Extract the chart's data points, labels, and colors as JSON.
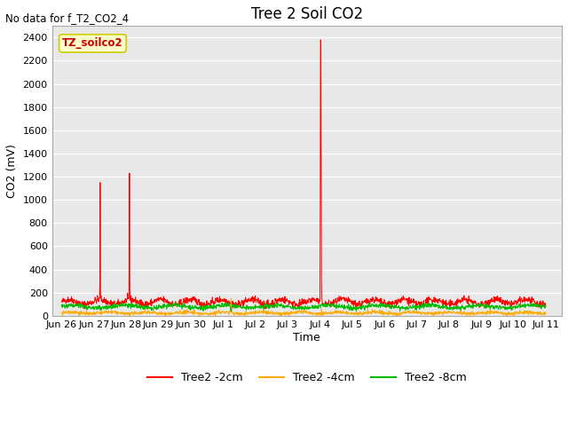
{
  "title": "Tree 2 Soil CO2",
  "no_data_text": "No data for f_T2_CO2_4",
  "ylabel": "CO2 (mV)",
  "xlabel": "Time",
  "annotation": "TZ_soilco2",
  "ylim": [
    0,
    2500
  ],
  "yticks": [
    0,
    200,
    400,
    600,
    800,
    1000,
    1200,
    1400,
    1600,
    1800,
    2000,
    2200,
    2400
  ],
  "background_color": "#e8e8e8",
  "grid_color": "#ffffff",
  "line_colors": {
    "2cm": "#ff0000",
    "4cm": "#ffaa00",
    "8cm": "#00bb00"
  },
  "legend_labels": [
    "Tree2 -2cm",
    "Tree2 -4cm",
    "Tree2 -8cm"
  ],
  "x_tick_labels": [
    "Jun 26",
    "Jun 27",
    "Jun 28",
    "Jun 29",
    "Jun 30",
    "Jul 1",
    "Jul 2",
    "Jul 3",
    "Jul 4",
    "Jul 5",
    "Jul 6",
    "Jul 7",
    "Jul 8",
    "Jul 9",
    "Jul 10",
    "Jul 11"
  ],
  "x_tick_positions": [
    0,
    1,
    2,
    3,
    4,
    5,
    6,
    7,
    8,
    9,
    10,
    11,
    12,
    13,
    14,
    15
  ],
  "figsize": [
    6.4,
    4.8
  ],
  "dpi": 100
}
